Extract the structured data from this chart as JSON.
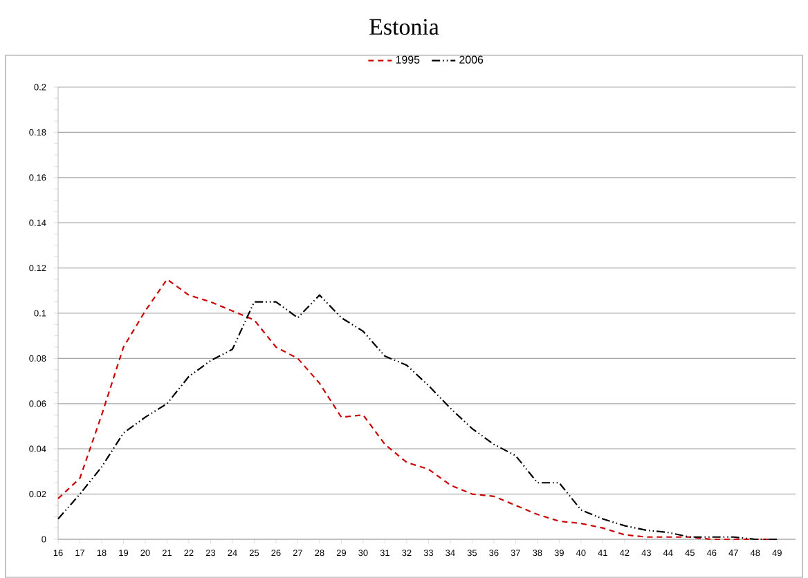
{
  "chart_data": {
    "type": "line",
    "title": "Estonia",
    "categories": [
      "16",
      "17",
      "18",
      "19",
      "20",
      "21",
      "22",
      "23",
      "24",
      "25",
      "26",
      "27",
      "28",
      "29",
      "30",
      "31",
      "32",
      "33",
      "34",
      "35",
      "36",
      "37",
      "38",
      "39",
      "40",
      "41",
      "42",
      "43",
      "44",
      "45",
      "46",
      "47",
      "48",
      "49"
    ],
    "series": [
      {
        "name": "1995",
        "color": "#cc0000",
        "line_style": "dashed",
        "values": [
          0.018,
          0.027,
          0.055,
          0.085,
          0.101,
          0.115,
          0.108,
          0.105,
          0.101,
          0.097,
          0.085,
          0.08,
          0.069,
          0.054,
          0.055,
          0.042,
          0.034,
          0.031,
          0.024,
          0.02,
          0.019,
          0.015,
          0.011,
          0.008,
          0.007,
          0.005,
          0.002,
          0.001,
          0.001,
          0.001,
          0,
          0,
          0,
          0
        ]
      },
      {
        "name": "2006",
        "color": "#000000",
        "line_style": "dashdotdotted",
        "values": [
          0.009,
          0.02,
          0.032,
          0.047,
          0.054,
          0.06,
          0.072,
          0.079,
          0.084,
          0.105,
          0.105,
          0.098,
          0.108,
          0.098,
          0.092,
          0.081,
          0.077,
          0.068,
          0.058,
          0.049,
          0.042,
          0.037,
          0.025,
          0.025,
          0.013,
          0.009,
          0.006,
          0.004,
          0.003,
          0.001,
          0.001,
          0.001,
          0,
          0
        ]
      }
    ],
    "ylim": [
      0,
      0.2
    ],
    "yticks": [
      0,
      0.02,
      0.04,
      0.06,
      0.08,
      0.1,
      0.12,
      0.14,
      0.16,
      0.18,
      0.2
    ],
    "grid": "y",
    "legend": "top",
    "marker": "none"
  }
}
